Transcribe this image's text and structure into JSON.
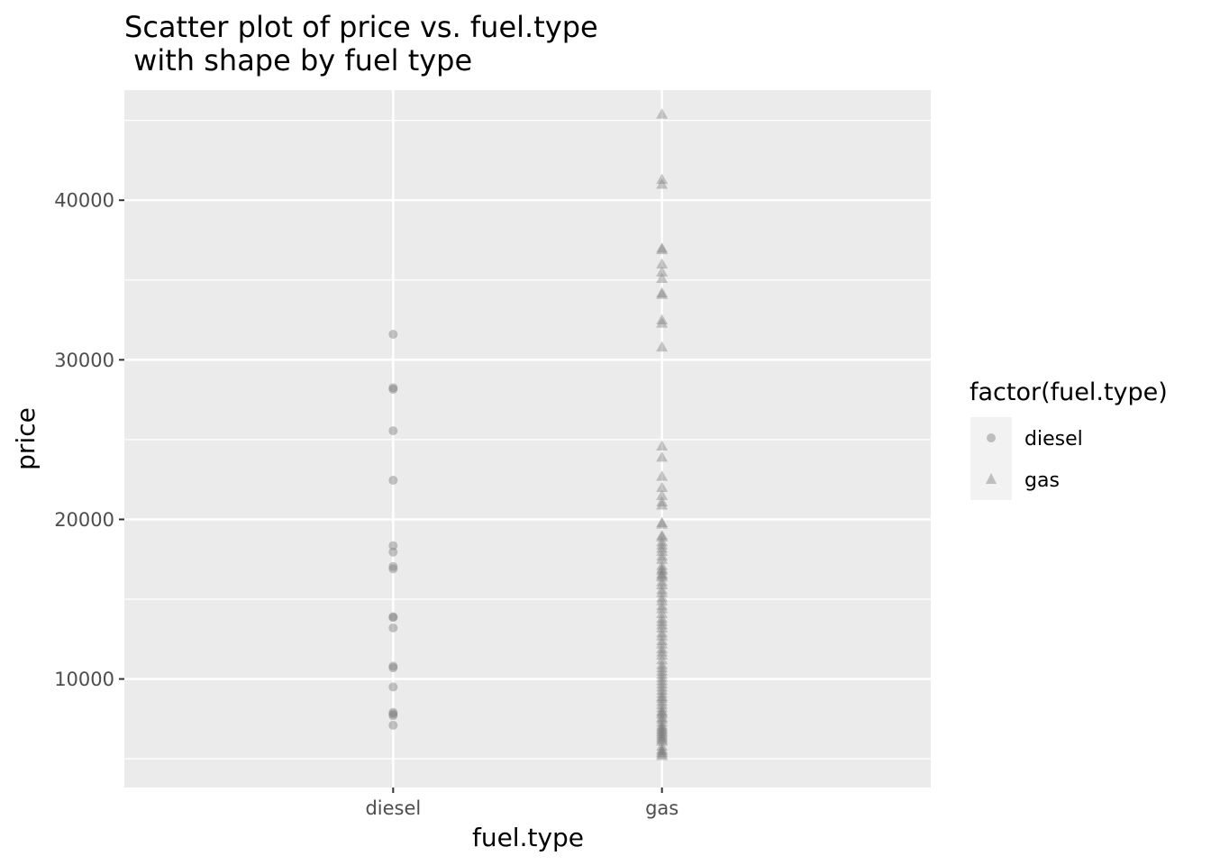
{
  "chart_data": {
    "type": "scatter",
    "title_line1": "Scatter plot of price vs. fuel.type",
    "title_line2": " with shape by fuel type",
    "xlabel": "fuel.type",
    "ylabel": "price",
    "categories": [
      "diesel",
      "gas"
    ],
    "ylim": [
      3200,
      46900
    ],
    "y_ticks": [
      10000,
      20000,
      30000,
      40000
    ],
    "y_tick_labels": [
      "10000",
      "20000",
      "30000",
      "40000"
    ],
    "grid": true,
    "legend": {
      "title": "factor(fuel.type)",
      "placement": "right",
      "items": [
        {
          "label": "diesel",
          "shape": "circle"
        },
        {
          "label": "gas",
          "shape": "triangle"
        }
      ]
    },
    "colors": {
      "panel": "#ebebeb",
      "grid": "#ffffff",
      "point": "#7f7f7f",
      "legend_key": "#f2f2f2"
    },
    "series": [
      {
        "category": "diesel",
        "shape": "circle",
        "values": [
          31600,
          28250,
          28150,
          25550,
          22450,
          18350,
          17950,
          17050,
          16900,
          13900,
          13850,
          13200,
          10800,
          10700,
          9500,
          7900,
          7800,
          7700,
          7100
        ]
      },
      {
        "category": "gas",
        "shape": "triangle",
        "values": [
          45400,
          41300,
          41000,
          37000,
          36900,
          36000,
          35500,
          35100,
          34200,
          34100,
          32500,
          32300,
          30800,
          24600,
          23900,
          22700,
          22000,
          21500,
          21100,
          20900,
          19800,
          19700,
          19000,
          18900,
          18600,
          18400,
          18200,
          18000,
          17700,
          17500,
          17100,
          16900,
          16800,
          16600,
          16500,
          16400,
          16100,
          15900,
          15600,
          15400,
          15100,
          14900,
          14600,
          14400,
          14100,
          13800,
          13600,
          13400,
          13200,
          12900,
          12700,
          12400,
          12200,
          11900,
          11700,
          11500,
          11200,
          10900,
          10700,
          10500,
          10300,
          10100,
          9900,
          9700,
          9500,
          9300,
          9100,
          8900,
          8800,
          8600,
          8400,
          8200,
          8000,
          7900,
          7800,
          7600,
          7500,
          7300,
          7100,
          7000,
          6900,
          6800,
          6700,
          6600,
          6500,
          6400,
          6300,
          6200,
          6100,
          5800,
          5600,
          5500,
          5400,
          5300,
          5200
        ]
      }
    ]
  }
}
